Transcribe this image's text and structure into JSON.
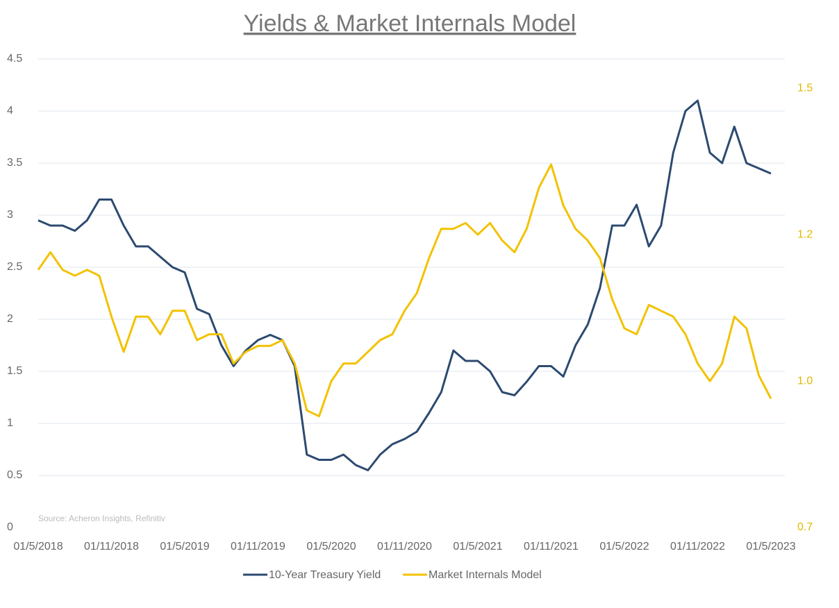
{
  "chart_data": {
    "type": "line",
    "title": "Yields & Market Internals Model",
    "source": "Source: Acheron Insights, Refinitiv",
    "x": [
      "01/5/2018",
      "01/6/2018",
      "01/7/2018",
      "01/8/2018",
      "01/9/2018",
      "01/10/2018",
      "01/11/2018",
      "01/12/2018",
      "01/1/2019",
      "01/2/2019",
      "01/3/2019",
      "01/4/2019",
      "01/5/2019",
      "01/6/2019",
      "01/7/2019",
      "01/8/2019",
      "01/9/2019",
      "01/10/2019",
      "01/11/2019",
      "01/12/2019",
      "01/1/2020",
      "01/2/2020",
      "01/3/2020",
      "01/4/2020",
      "01/5/2020",
      "01/6/2020",
      "01/7/2020",
      "01/8/2020",
      "01/9/2020",
      "01/10/2020",
      "01/11/2020",
      "01/12/2020",
      "01/1/2021",
      "01/2/2021",
      "01/3/2021",
      "01/4/2021",
      "01/5/2021",
      "01/6/2021",
      "01/7/2021",
      "01/8/2021",
      "01/9/2021",
      "01/10/2021",
      "01/11/2021",
      "01/12/2021",
      "01/1/2022",
      "01/2/2022",
      "01/3/2022",
      "01/4/2022",
      "01/5/2022",
      "01/6/2022",
      "01/7/2022",
      "01/8/2022",
      "01/9/2022",
      "01/10/2022",
      "01/11/2022",
      "01/12/2022",
      "01/1/2023",
      "01/2/2023",
      "01/3/2023",
      "01/4/2023",
      "01/5/2023"
    ],
    "xticks": [
      "01/5/2018",
      "01/11/2018",
      "01/5/2019",
      "01/11/2019",
      "01/5/2020",
      "01/11/2020",
      "01/5/2021",
      "01/11/2021",
      "01/5/2022",
      "01/11/2022",
      "01/5/2023"
    ],
    "ylim": [
      0,
      4.5
    ],
    "yticks": [
      0,
      0.5,
      1,
      1.5,
      2,
      2.5,
      3,
      3.5,
      4,
      4.5
    ],
    "y2lim": [
      0.7,
      1.5
    ],
    "y2ticks": [
      0.7,
      {
        "value": 0.95,
        "label": "1.0"
      },
      1.2,
      {
        "value": 1.45,
        "label": "1.5"
      }
    ],
    "grid": true,
    "legend": "bottom",
    "series": [
      {
        "name": "10-Year Treasury Yield",
        "color": "#2c4a70",
        "values": [
          2.95,
          2.9,
          2.9,
          2.85,
          2.95,
          3.15,
          3.15,
          2.9,
          2.7,
          2.7,
          2.6,
          2.5,
          2.45,
          2.1,
          2.05,
          1.75,
          1.55,
          1.7,
          1.8,
          1.85,
          1.8,
          1.55,
          0.7,
          0.65,
          0.65,
          0.7,
          0.6,
          0.55,
          0.7,
          0.8,
          0.85,
          0.92,
          1.1,
          1.3,
          1.7,
          1.6,
          1.6,
          1.5,
          1.3,
          1.27,
          1.4,
          1.55,
          1.55,
          1.45,
          1.75,
          1.95,
          2.3,
          2.9,
          2.9,
          3.1,
          2.7,
          2.9,
          3.6,
          4.0,
          4.1,
          3.6,
          3.5,
          3.85,
          3.5,
          3.45,
          3.4
        ]
      },
      {
        "name": "Market Internals Model",
        "color": "#f2c200",
        "axis": "y2",
        "values": [
          1.14,
          1.17,
          1.14,
          1.13,
          1.14,
          1.13,
          1.06,
          1.0,
          1.06,
          1.06,
          1.03,
          1.07,
          1.07,
          1.02,
          1.03,
          1.03,
          0.98,
          1.0,
          1.01,
          1.01,
          1.02,
          0.98,
          0.9,
          0.89,
          0.95,
          0.98,
          0.98,
          1.0,
          1.02,
          1.03,
          1.07,
          1.1,
          1.16,
          1.21,
          1.21,
          1.22,
          1.2,
          1.22,
          1.19,
          1.17,
          1.21,
          1.28,
          1.32,
          1.25,
          1.21,
          1.19,
          1.16,
          1.09,
          1.04,
          1.03,
          1.08,
          1.07,
          1.06,
          1.03,
          0.98,
          0.95,
          0.98,
          1.06,
          1.04,
          0.96,
          0.92
        ]
      }
    ]
  }
}
